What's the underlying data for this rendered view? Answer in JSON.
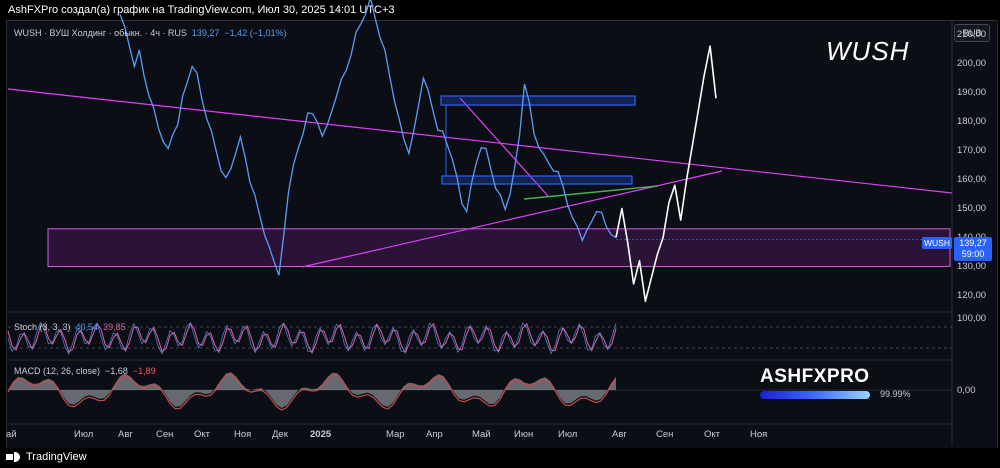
{
  "header": {
    "title": "AshFXPro создал(а) график на TradingView.com, Июл 30, 2025 14:01 UTC+3"
  },
  "footer": {
    "brand": "TradingView"
  },
  "watermark": {
    "title": "WUSH",
    "brand_name": "ASHFXPRO",
    "brand_percent": "99.99%"
  },
  "legend": {
    "symbol": "WUSH · ВУШ Холдинг · обыкн. · 4ч · RUS",
    "close": "139,27",
    "change": "−1,42 (−1,01%)"
  },
  "stoch": {
    "label": "Stoch (3, 3, 3)",
    "k": "40,54",
    "d": "39,85",
    "upper": "100,00"
  },
  "macd": {
    "label": "MACD (12, 26, close)",
    "hist": "−1,68",
    "signal": "−1,89",
    "zero": "0,00"
  },
  "currency_button": "RUB",
  "last_price": {
    "symbol": "WUSH",
    "price": "139,27",
    "countdown": "59:00"
  },
  "colors": {
    "price": "#5b9cf6",
    "trend_lines": "#e040fb",
    "zone": "#9c27b0",
    "boxes": "#2962ff",
    "stoch": "#e05fa6",
    "macd": "#c44d4d"
  },
  "chart_data": {
    "type": "line",
    "title": "WUSH",
    "xlabel": "",
    "ylabel": "",
    "ylim": [
      115,
      215
    ],
    "y_ticks": [
      "210,00",
      "200,00",
      "190,00",
      "180,00",
      "170,00",
      "160,00",
      "150,00",
      "140,00",
      "130,00",
      "120,00"
    ],
    "x_ticks": [
      "ай",
      "Июл",
      "Авг",
      "Сен",
      "Окт",
      "Ноя",
      "Дек",
      "2025",
      "Мар",
      "Апр",
      "Май",
      "Июн",
      "Июл",
      "Авг",
      "Сен",
      "Окт",
      "Ноя"
    ],
    "x_ticks_bold": [
      "2025"
    ],
    "series": [
      {
        "values": [
          218,
          212,
          206,
          200,
          204,
          196,
          190,
          184,
          178,
          174,
          170,
          176,
          180,
          188,
          194,
          200,
          196,
          188,
          182,
          176,
          170,
          164,
          160,
          164,
          170,
          174,
          168,
          160,
          154,
          148,
          142,
          136,
          132,
          128,
          140,
          156,
          166,
          170,
          176,
          184,
          182,
          180,
          176,
          178,
          184,
          190,
          194,
          198,
          204,
          210,
          214,
          218,
          222,
          216,
          210,
          204,
          196,
          188,
          180,
          174,
          170,
          176,
          186,
          196,
          190,
          184,
          178,
          176,
          172,
          168,
          160,
          152,
          150,
          158,
          166,
          172,
          170,
          164,
          158,
          154,
          150,
          156,
          164,
          176,
          194,
          186,
          176,
          172,
          168,
          166,
          164,
          162,
          158,
          152,
          146,
          144,
          140,
          142,
          146,
          150,
          148,
          144,
          142,
          139.27
        ],
        "t_end": "2025-07-30"
      }
    ],
    "annotations": {
      "support_zone": [
        130,
        143
      ],
      "projection": [
        140,
        150,
        138,
        124,
        132,
        118,
        126,
        134,
        140,
        152,
        158,
        146,
        160,
        172,
        184,
        196,
        206,
        188
      ]
    }
  }
}
